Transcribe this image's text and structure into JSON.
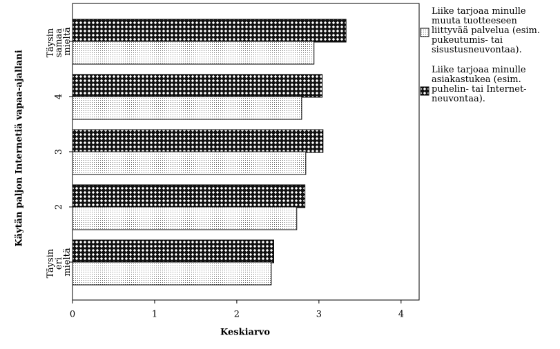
{
  "chart_data": {
    "type": "bar",
    "orientation": "horizontal",
    "xlabel": "Keskiarvo",
    "ylabel": "Käytän paljon Internetiä vapaa-ajallani",
    "categories": [
      "Täysin samaa mieltä",
      "4",
      "3",
      "2",
      "Täysin eri mieltä"
    ],
    "series": [
      {
        "name": "Liike tarjoaa minulle muuta tuotteeseen liittyvää palvelua (esim. pukeutumis- tai sisustusneuvontaa).",
        "color": "#000000",
        "pattern": "dots",
        "values": [
          2.94,
          2.79,
          2.84,
          2.73,
          2.42
        ]
      },
      {
        "name": "Liike tarjoaa minulle asiakastukea (esim. puhelin- tai Internet-neuvontaa).",
        "color": "#000000",
        "pattern": "crosshatch",
        "values": [
          3.33,
          3.04,
          3.05,
          2.83,
          2.45
        ]
      }
    ],
    "xlim": [
      0,
      4.22
    ],
    "xticks": [
      0,
      1,
      2,
      3,
      4
    ],
    "legend": "right"
  }
}
